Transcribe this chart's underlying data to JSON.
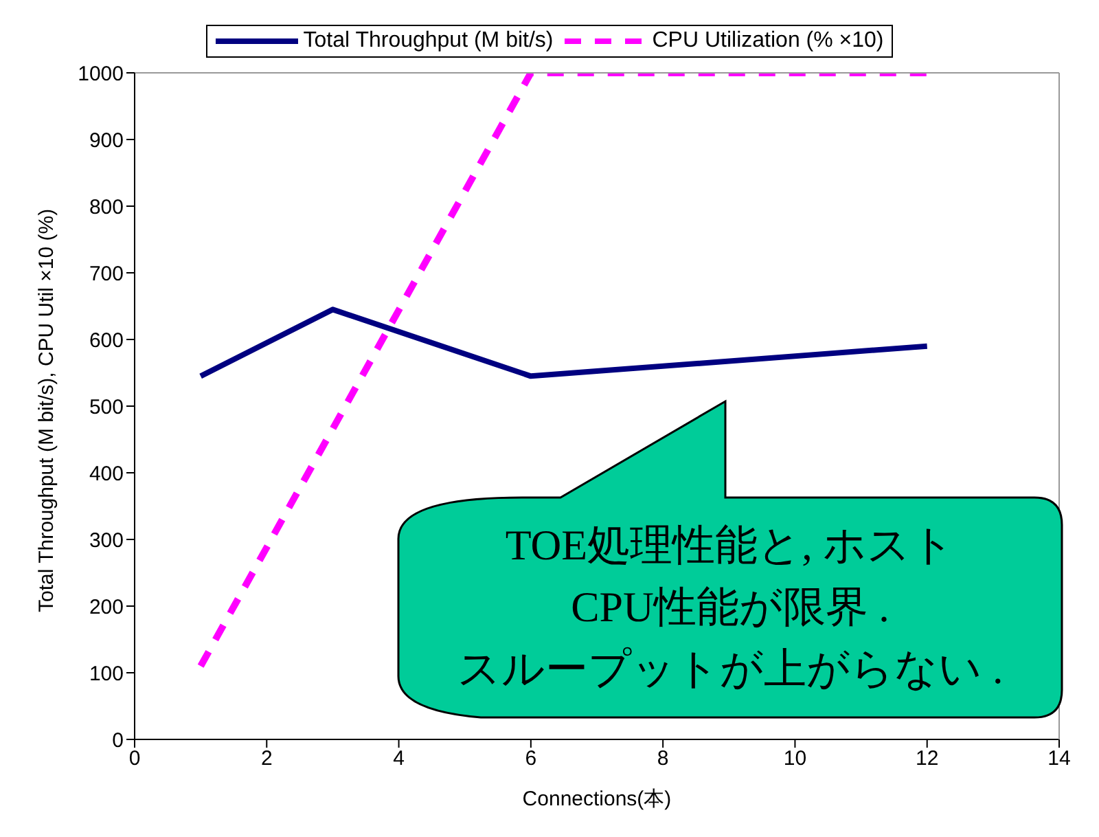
{
  "chart_data": {
    "type": "line",
    "xlabel": "Connections(本)",
    "ylabel": "Total Throughput (M bit/s),  CPU Util ×10 (%)",
    "xlim": [
      0,
      14
    ],
    "xticks": [
      0,
      2,
      4,
      6,
      8,
      10,
      12,
      14
    ],
    "ylim": [
      0,
      1000
    ],
    "yticks": [
      0,
      100,
      200,
      300,
      400,
      500,
      600,
      700,
      800,
      900,
      1000
    ],
    "grid": false,
    "legend": "top",
    "marker": "none",
    "series": [
      {
        "name": "Total Throughput (M bit/s)",
        "color": "#000080",
        "x": [
          1,
          3,
          6,
          12
        ],
        "values": [
          545,
          645,
          545,
          590
        ],
        "line_style": "solid"
      },
      {
        "name": "CPU Utilization (% ×10)",
        "color": "#ff00ff",
        "x": [
          1,
          6,
          12
        ],
        "values": [
          110,
          1000,
          1000
        ],
        "line_style": "dashed"
      }
    ],
    "annotations": [
      "TOE処理性能と, ホスト\nCPU性能が限界 .\nスループットが上がらない ."
    ]
  }
}
